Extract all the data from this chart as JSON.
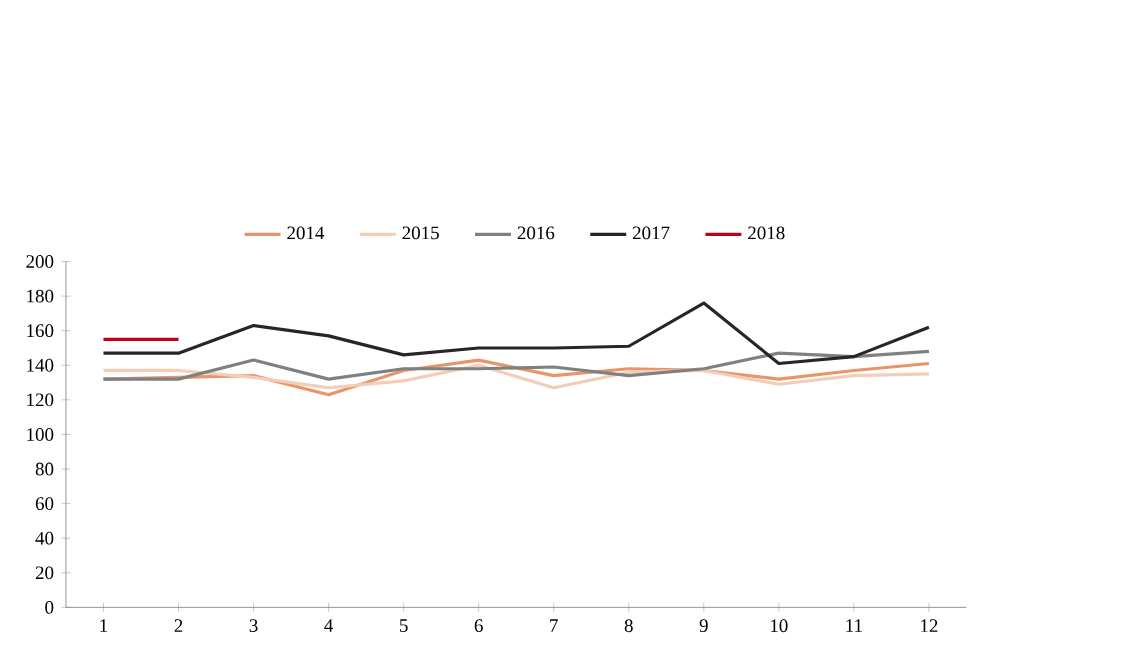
{
  "chart_data": {
    "type": "line",
    "categories": [
      "1",
      "2",
      "3",
      "4",
      "5",
      "6",
      "7",
      "8",
      "9",
      "10",
      "11",
      "12"
    ],
    "ylim": [
      0,
      200
    ],
    "yticks": [
      0,
      20,
      40,
      60,
      80,
      100,
      120,
      140,
      160,
      180,
      200
    ],
    "grid": false,
    "legend": "top",
    "marker": "none",
    "series": [
      {
        "name": "2014",
        "color": "#e8956a",
        "values": [
          132,
          133,
          134,
          123,
          137,
          143,
          134,
          138,
          137,
          132,
          137,
          141
        ]
      },
      {
        "name": "2015",
        "color": "#f2cdb8",
        "values": [
          137,
          137,
          133,
          127,
          131,
          140,
          127,
          136,
          137,
          129,
          134,
          135
        ]
      },
      {
        "name": "2016",
        "color": "#808080",
        "values": [
          132,
          132,
          143,
          132,
          138,
          138,
          139,
          134,
          138,
          147,
          145,
          148
        ]
      },
      {
        "name": "2017",
        "color": "#262626",
        "values": [
          147,
          147,
          163,
          157,
          146,
          150,
          150,
          151,
          176,
          141,
          145,
          162
        ]
      },
      {
        "name": "2018",
        "color": "#c0001a",
        "values": [
          155,
          155,
          null,
          null,
          null,
          null,
          null,
          null,
          null,
          null,
          null,
          null
        ]
      }
    ]
  }
}
